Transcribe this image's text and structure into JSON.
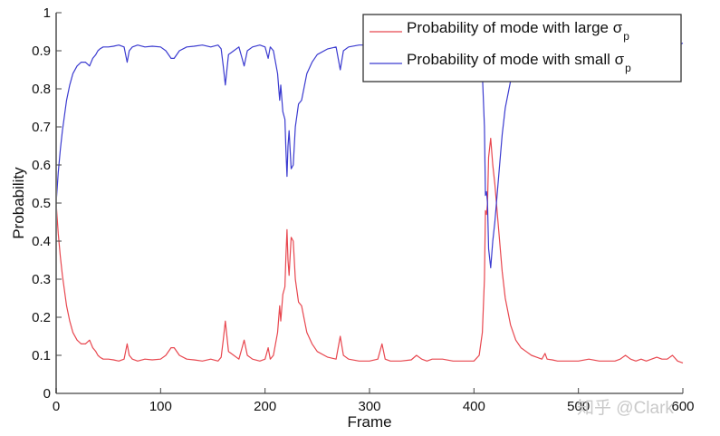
{
  "chart_data": {
    "type": "line",
    "title": "",
    "xlabel": "Frame",
    "ylabel": "Probability",
    "xlim": [
      0,
      600
    ],
    "ylim": [
      0,
      1
    ],
    "xticks": [
      0,
      100,
      200,
      300,
      400,
      500,
      600
    ],
    "xtick_labels": [
      "0",
      "100",
      "200",
      "300",
      "400",
      "500",
      "600"
    ],
    "yticks": [
      0,
      0.1,
      0.2,
      0.3,
      0.4,
      0.5,
      0.6,
      0.7,
      0.8,
      0.9,
      1
    ],
    "ytick_labels": [
      "0",
      "0.1",
      "0.2",
      "0.3",
      "0.4",
      "0.5",
      "0.6",
      "0.7",
      "0.8",
      "0.9",
      "1"
    ],
    "grid": false,
    "legend_position": "upper right",
    "series": [
      {
        "name": "Probability of mode with large σp",
        "legend_main": "Probability of mode with large σ",
        "legend_sub": "p",
        "color": "#e8474f",
        "x": [
          0,
          2,
          4,
          6,
          8,
          10,
          13,
          16,
          20,
          24,
          28,
          32,
          35,
          38,
          40,
          42,
          45,
          50,
          55,
          60,
          65,
          68,
          70,
          73,
          78,
          85,
          92,
          100,
          105,
          110,
          113,
          118,
          125,
          132,
          140,
          148,
          155,
          158,
          160,
          162,
          165,
          170,
          175,
          178,
          180,
          183,
          188,
          195,
          200,
          203,
          205,
          208,
          212,
          214,
          215,
          217,
          219,
          220,
          221,
          222,
          223,
          225,
          227,
          229,
          232,
          235,
          240,
          245,
          250,
          260,
          268,
          270,
          272,
          275,
          280,
          290,
          300,
          308,
          310,
          312,
          315,
          320,
          330,
          340,
          345,
          350,
          355,
          360,
          370,
          380,
          390,
          400,
          405,
          408,
          410,
          411,
          412,
          413,
          414,
          416,
          418,
          420,
          423,
          427,
          430,
          435,
          440,
          445,
          450,
          455,
          460,
          465,
          468,
          470,
          475,
          480,
          490,
          500,
          510,
          520,
          530,
          535,
          540,
          545,
          550,
          555,
          560,
          565,
          570,
          575,
          580,
          585,
          590,
          595,
          600
        ],
        "values": [
          0.5,
          0.42,
          0.36,
          0.31,
          0.27,
          0.23,
          0.19,
          0.16,
          0.14,
          0.13,
          0.13,
          0.14,
          0.12,
          0.11,
          0.1,
          0.095,
          0.09,
          0.09,
          0.088,
          0.085,
          0.09,
          0.13,
          0.1,
          0.09,
          0.085,
          0.09,
          0.088,
          0.09,
          0.1,
          0.12,
          0.12,
          0.1,
          0.09,
          0.088,
          0.085,
          0.09,
          0.085,
          0.095,
          0.14,
          0.19,
          0.11,
          0.1,
          0.09,
          0.12,
          0.14,
          0.1,
          0.09,
          0.085,
          0.09,
          0.12,
          0.09,
          0.1,
          0.16,
          0.23,
          0.19,
          0.26,
          0.28,
          0.36,
          0.43,
          0.35,
          0.31,
          0.41,
          0.4,
          0.3,
          0.24,
          0.23,
          0.16,
          0.13,
          0.11,
          0.095,
          0.09,
          0.12,
          0.15,
          0.1,
          0.09,
          0.085,
          0.085,
          0.09,
          0.11,
          0.13,
          0.09,
          0.085,
          0.085,
          0.088,
          0.1,
          0.09,
          0.085,
          0.09,
          0.09,
          0.085,
          0.085,
          0.085,
          0.1,
          0.16,
          0.3,
          0.48,
          0.47,
          0.5,
          0.62,
          0.67,
          0.6,
          0.55,
          0.45,
          0.32,
          0.25,
          0.18,
          0.14,
          0.12,
          0.11,
          0.1,
          0.095,
          0.09,
          0.105,
          0.09,
          0.088,
          0.085,
          0.085,
          0.085,
          0.09,
          0.085,
          0.085,
          0.085,
          0.09,
          0.1,
          0.09,
          0.085,
          0.09,
          0.085,
          0.09,
          0.095,
          0.09,
          0.09,
          0.1,
          0.085,
          0.08
        ]
      },
      {
        "name": "Probability of mode with small σp",
        "legend_main": "Probability of mode with small σ",
        "legend_sub": "p",
        "color": "#3b3bd0",
        "x": [
          0,
          2,
          4,
          6,
          8,
          10,
          13,
          16,
          20,
          24,
          28,
          32,
          35,
          38,
          40,
          42,
          45,
          50,
          55,
          60,
          65,
          68,
          70,
          73,
          78,
          85,
          92,
          100,
          105,
          110,
          113,
          118,
          125,
          132,
          140,
          148,
          155,
          158,
          160,
          162,
          165,
          170,
          175,
          178,
          180,
          183,
          188,
          195,
          200,
          203,
          205,
          208,
          212,
          214,
          215,
          217,
          219,
          220,
          221,
          222,
          223,
          225,
          227,
          229,
          232,
          235,
          240,
          245,
          250,
          260,
          268,
          270,
          272,
          275,
          280,
          290,
          300,
          308,
          310,
          312,
          315,
          320,
          330,
          340,
          345,
          350,
          355,
          360,
          370,
          380,
          390,
          400,
          405,
          408,
          410,
          411,
          412,
          413,
          414,
          416,
          418,
          420,
          423,
          427,
          430,
          435,
          440,
          445,
          450,
          455,
          460,
          465,
          468,
          470,
          475,
          480,
          490,
          500,
          510,
          520,
          530,
          535,
          540,
          545,
          550,
          555,
          560,
          565,
          570,
          575,
          580,
          585,
          590,
          595,
          600
        ],
        "values": [
          0.5,
          0.58,
          0.64,
          0.69,
          0.73,
          0.77,
          0.81,
          0.84,
          0.86,
          0.87,
          0.87,
          0.86,
          0.88,
          0.89,
          0.9,
          0.905,
          0.91,
          0.91,
          0.912,
          0.915,
          0.91,
          0.87,
          0.9,
          0.91,
          0.915,
          0.91,
          0.912,
          0.91,
          0.9,
          0.88,
          0.88,
          0.9,
          0.91,
          0.912,
          0.915,
          0.91,
          0.915,
          0.905,
          0.86,
          0.81,
          0.89,
          0.9,
          0.91,
          0.88,
          0.86,
          0.9,
          0.91,
          0.915,
          0.91,
          0.88,
          0.91,
          0.9,
          0.84,
          0.77,
          0.81,
          0.74,
          0.72,
          0.64,
          0.57,
          0.65,
          0.69,
          0.59,
          0.6,
          0.7,
          0.76,
          0.77,
          0.84,
          0.87,
          0.89,
          0.905,
          0.91,
          0.88,
          0.85,
          0.9,
          0.91,
          0.915,
          0.915,
          0.91,
          0.89,
          0.87,
          0.91,
          0.915,
          0.915,
          0.912,
          0.9,
          0.91,
          0.915,
          0.91,
          0.91,
          0.915,
          0.915,
          0.915,
          0.9,
          0.84,
          0.7,
          0.52,
          0.53,
          0.5,
          0.38,
          0.33,
          0.4,
          0.45,
          0.55,
          0.68,
          0.75,
          0.82,
          0.86,
          0.88,
          0.89,
          0.9,
          0.905,
          0.91,
          0.895,
          0.91,
          0.912,
          0.915,
          0.915,
          0.915,
          0.91,
          0.915,
          0.915,
          0.915,
          0.91,
          0.9,
          0.91,
          0.915,
          0.91,
          0.915,
          0.91,
          0.905,
          0.91,
          0.91,
          0.9,
          0.915,
          0.92
        ]
      }
    ]
  },
  "watermark": {
    "text": "知乎 @Clark"
  }
}
